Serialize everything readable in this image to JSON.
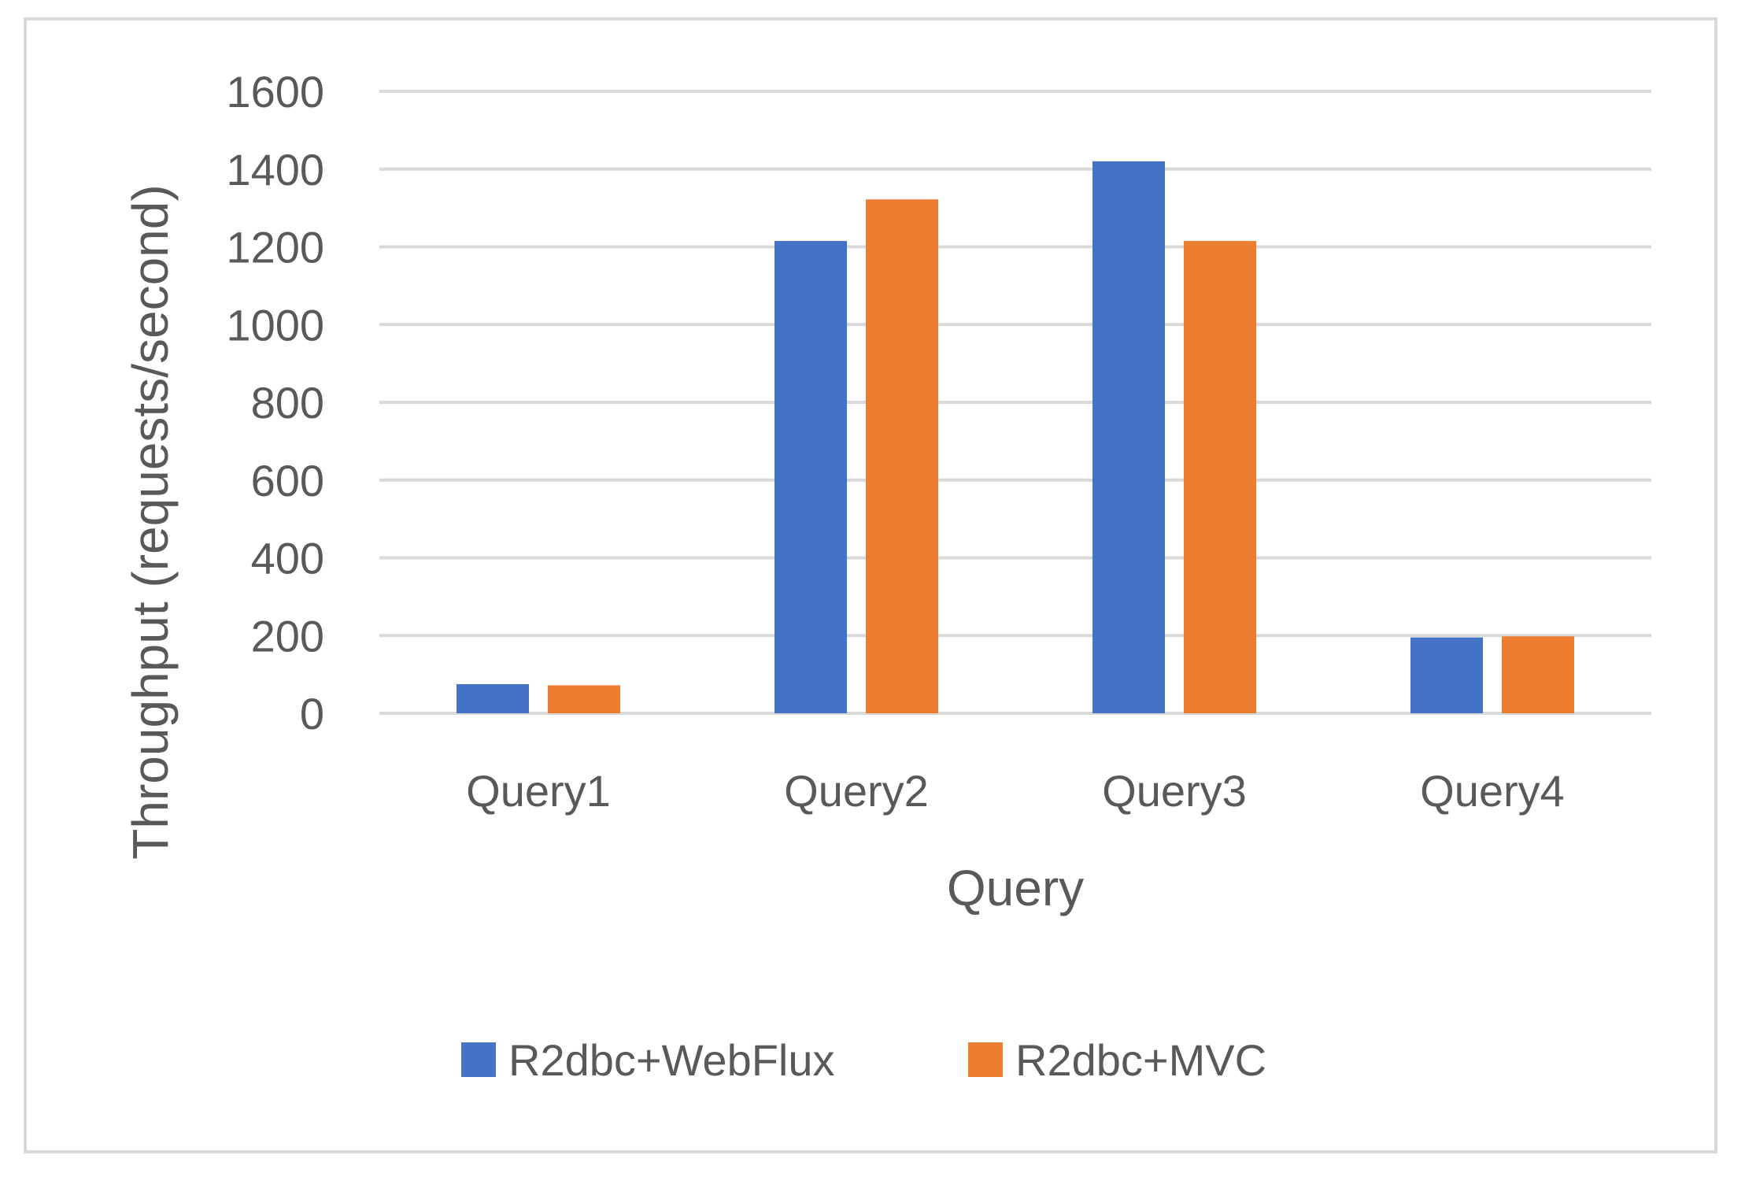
{
  "chart_data": {
    "type": "bar",
    "title": "",
    "xlabel": "Query",
    "ylabel": "Throughput (requests/second)",
    "categories": [
      "Query1",
      "Query2",
      "Query3",
      "Query4"
    ],
    "series": [
      {
        "name": "R2dbc+WebFlux",
        "color": "#4472c4",
        "values": [
          75,
          1215,
          1420,
          195
        ]
      },
      {
        "name": "R2dbc+MVC",
        "color": "#ed7d31",
        "values": [
          72,
          1322,
          1215,
          198
        ]
      }
    ],
    "ylim": [
      0,
      1600
    ],
    "yticks": [
      0,
      200,
      400,
      600,
      800,
      1000,
      1200,
      1400,
      1600
    ],
    "grid": true,
    "gridColor": "#d9d9d9",
    "legend": "bottom"
  }
}
